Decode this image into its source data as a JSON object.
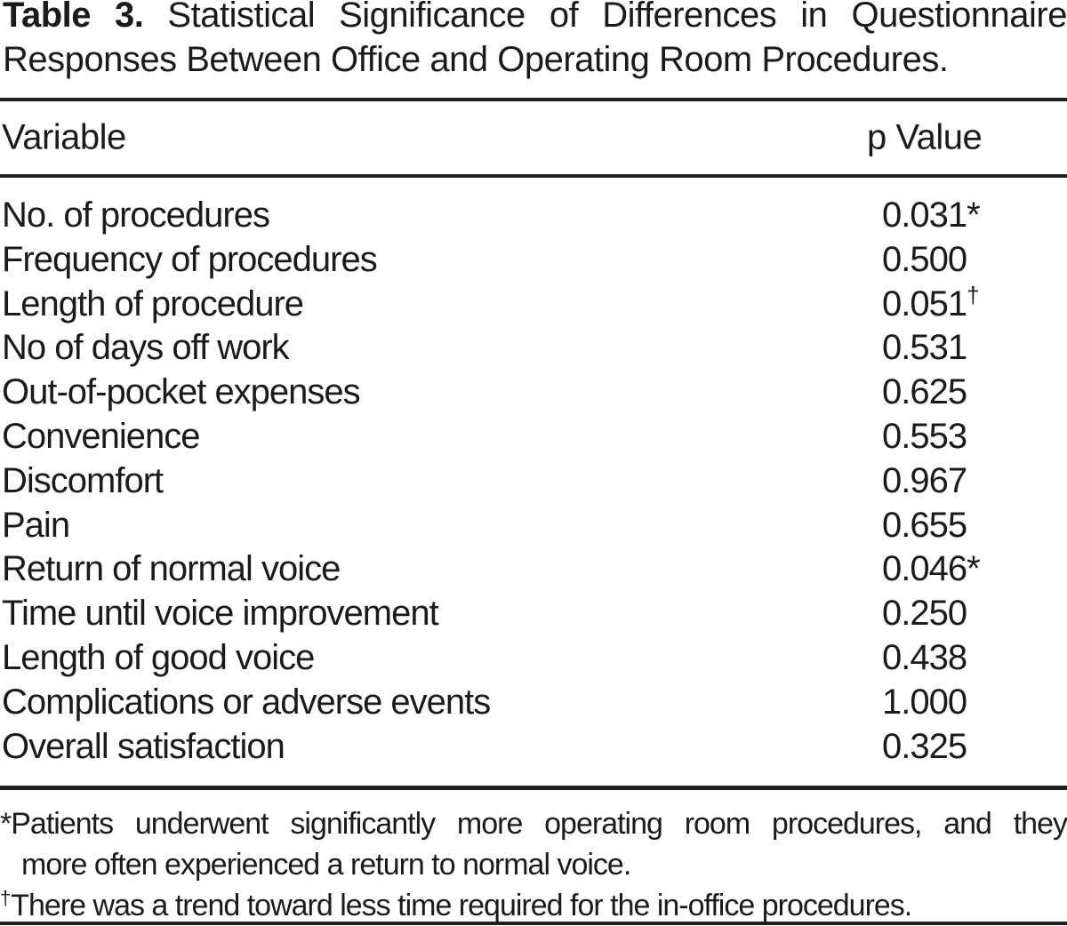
{
  "title": {
    "label": "Table 3.",
    "line1_rest": "Statistical Significance of Differences in Questionnaire",
    "line2": "Responses Between Office and Operating Room Procedures."
  },
  "table": {
    "header": {
      "variable": "Variable",
      "p_value": "p Value"
    },
    "rows": [
      {
        "variable": "No. of procedures",
        "p_value": "0.031",
        "marker": "*"
      },
      {
        "variable": "Frequency of procedures",
        "p_value": "0.500",
        "marker": ""
      },
      {
        "variable": "Length of procedure",
        "p_value": "0.051",
        "marker": "†"
      },
      {
        "variable": "No of days off work",
        "p_value": "0.531",
        "marker": ""
      },
      {
        "variable": "Out-of-pocket expenses",
        "p_value": "0.625",
        "marker": ""
      },
      {
        "variable": "Convenience",
        "p_value": "0.553",
        "marker": ""
      },
      {
        "variable": "Discomfort",
        "p_value": "0.967",
        "marker": ""
      },
      {
        "variable": "Pain",
        "p_value": "0.655",
        "marker": ""
      },
      {
        "variable": "Return of normal voice",
        "p_value": "0.046",
        "marker": "*"
      },
      {
        "variable": "Time until voice improvement",
        "p_value": "0.250",
        "marker": ""
      },
      {
        "variable": "Length of good voice",
        "p_value": "0.438",
        "marker": ""
      },
      {
        "variable": "Complications or adverse events",
        "p_value": "1.000",
        "marker": ""
      },
      {
        "variable": "Overall satisfaction",
        "p_value": "0.325",
        "marker": ""
      }
    ]
  },
  "footnotes": [
    {
      "marker": "*",
      "line1": "Patients underwent significantly more operating room procedures, and they",
      "line2": "more often experienced a return to normal voice."
    },
    {
      "marker": "†",
      "line1": "There was a trend toward less time required for the in-office procedures.",
      "line2": ""
    }
  ],
  "colors": {
    "text": "#1b1b1b",
    "rule": "#1f1f1f",
    "background": "#ffffff"
  }
}
